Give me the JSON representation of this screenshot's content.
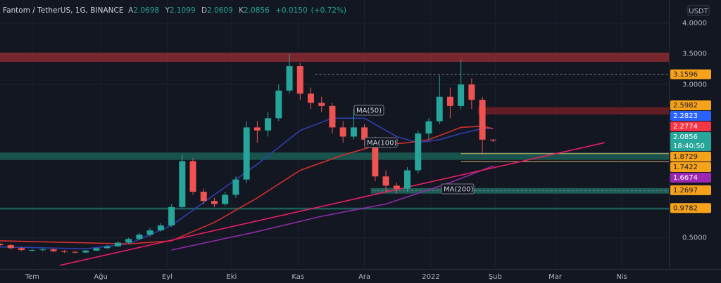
{
  "chart_data": {
    "type": "candlestick",
    "title": "Fantom / TetherUS, 1G, BINANCE",
    "ohlc_names": [
      "A",
      "Y",
      "D",
      "K"
    ],
    "ohlc_values": [
      2.0698,
      2.1099,
      2.0609,
      2.0856
    ],
    "change": {
      "value": 0.015,
      "label": "+0.0150"
    },
    "change_pct": {
      "value": 0.72,
      "label": "(+0.72%)"
    },
    "currency": "USDT",
    "countdown": "18:40:50",
    "up_color": "#26a69a",
    "down_color": "#ef5350",
    "x": [
      0,
      5,
      10,
      15,
      20,
      25,
      30,
      35,
      40,
      45,
      50,
      55,
      60,
      65,
      70,
      75,
      80,
      85,
      90,
      95,
      100,
      105,
      110,
      115,
      120,
      125,
      130,
      135,
      140,
      145,
      150,
      155,
      160,
      165,
      170,
      175,
      180,
      185,
      190,
      195,
      200,
      205,
      210,
      215,
      220,
      225,
      230
    ],
    "open": [
      0.4,
      0.38,
      0.33,
      0.3,
      0.3,
      0.31,
      0.28,
      0.27,
      0.26,
      0.29,
      0.33,
      0.36,
      0.42,
      0.48,
      0.55,
      0.62,
      0.7,
      1.0,
      1.75,
      1.25,
      1.1,
      1.05,
      1.2,
      1.45,
      2.3,
      2.25,
      2.45,
      2.9,
      3.3,
      2.85,
      2.7,
      2.65,
      2.3,
      2.15,
      2.3,
      2.1,
      1.5,
      1.35,
      1.3,
      1.6,
      2.2,
      2.4,
      2.8,
      2.65,
      3.0,
      2.75,
      2.1
    ],
    "high": [
      0.42,
      0.4,
      0.35,
      0.32,
      0.33,
      0.33,
      0.3,
      0.29,
      0.3,
      0.34,
      0.38,
      0.44,
      0.5,
      0.58,
      0.66,
      0.74,
      1.05,
      1.85,
      1.8,
      1.3,
      1.15,
      1.25,
      1.5,
      2.4,
      2.4,
      2.55,
      3.0,
      3.5,
      3.35,
      2.95,
      2.8,
      2.7,
      2.4,
      2.6,
      2.35,
      2.15,
      1.6,
      1.4,
      1.65,
      2.25,
      2.45,
      3.15,
      2.95,
      3.4,
      3.1,
      2.8,
      2.1099
    ],
    "low": [
      0.36,
      0.31,
      0.28,
      0.28,
      0.28,
      0.26,
      0.25,
      0.24,
      0.25,
      0.28,
      0.32,
      0.35,
      0.4,
      0.46,
      0.52,
      0.6,
      0.68,
      0.98,
      1.2,
      1.05,
      1.0,
      1.02,
      1.15,
      1.4,
      2.05,
      2.15,
      2.4,
      2.85,
      2.75,
      2.6,
      2.55,
      2.2,
      2.05,
      2.1,
      2.0,
      1.42,
      1.25,
      1.22,
      1.25,
      1.55,
      2.1,
      2.35,
      2.45,
      2.6,
      2.6,
      1.85,
      2.0609
    ],
    "close": [
      0.38,
      0.33,
      0.3,
      0.3,
      0.31,
      0.28,
      0.27,
      0.26,
      0.29,
      0.33,
      0.36,
      0.42,
      0.48,
      0.55,
      0.62,
      0.7,
      1.0,
      1.75,
      1.25,
      1.1,
      1.05,
      1.2,
      1.45,
      2.3,
      2.25,
      2.45,
      2.9,
      3.3,
      2.85,
      2.7,
      2.65,
      2.3,
      2.15,
      2.3,
      2.1,
      1.5,
      1.35,
      1.3,
      1.6,
      2.2,
      2.4,
      2.8,
      2.65,
      3.0,
      2.75,
      2.1,
      2.0856
    ],
    "series": [
      {
        "name": "MA(50)",
        "color": "#2f3fb0",
        "x": [
          0,
          40,
          60,
          80,
          100,
          120,
          140,
          155,
          170,
          185,
          195,
          205,
          215,
          225,
          230
        ],
        "values": [
          0.35,
          0.32,
          0.4,
          0.7,
          1.2,
          1.7,
          2.25,
          2.45,
          2.45,
          2.15,
          2.05,
          2.1,
          2.2,
          2.28,
          2.28
        ]
      },
      {
        "name": "MA(100)",
        "color": "#d32f2f",
        "x": [
          0,
          60,
          80,
          100,
          120,
          140,
          160,
          175,
          190,
          200,
          215,
          225,
          230
        ],
        "values": [
          0.45,
          0.4,
          0.45,
          0.75,
          1.15,
          1.6,
          1.85,
          2.0,
          2.05,
          2.1,
          2.3,
          2.32,
          2.28
        ]
      },
      {
        "name": "MA(200)",
        "color": "#8e2aa8",
        "x": [
          80,
          120,
          150,
          180,
          210,
          230
        ],
        "values": [
          0.3,
          0.6,
          0.85,
          1.05,
          1.4,
          1.67
        ]
      }
    ],
    "trendline": {
      "color": "#e91e63",
      "x": [
        28,
        282
      ],
      "values": [
        0.05,
        2.05
      ]
    },
    "zones": [
      {
        "color": "#8c2a30",
        "from": 0,
        "low": 3.37,
        "high": 3.52
      },
      {
        "color": "#1b5e55",
        "from": 0,
        "low": 1.77,
        "high": 1.89
      },
      {
        "color": "#1f6b60",
        "from": 0,
        "low": 0.96,
        "high": 0.99
      },
      {
        "color": "#6e2024",
        "from": 223,
        "low": 2.51,
        "high": 2.63
      },
      {
        "color": "#1f6b60",
        "from": 173,
        "low": 1.22,
        "high": 1.31
      }
    ],
    "levels": [
      {
        "value": 3.1596,
        "color": "#787b86",
        "from": 147,
        "dash": true
      },
      {
        "value": 1.2697,
        "color": "#787b86",
        "from": 174,
        "dash": true
      },
      {
        "value": 1.8729,
        "color": "#d4b06a",
        "from": 215,
        "dash": false
      },
      {
        "value": 1.7422,
        "color": "#d4b06a",
        "from": 215,
        "dash": false
      }
    ],
    "price_labels": [
      {
        "value": 3.1596,
        "color": "#f7a21b",
        "text_color": "#131722"
      },
      {
        "value": 2.5982,
        "color": "#f7a21b",
        "text_color": "#131722"
      },
      {
        "value": 2.2823,
        "color": "#2962ff",
        "text_color": "#ffffff"
      },
      {
        "value": 2.2774,
        "color": "#f23645",
        "text_color": "#ffffff"
      },
      {
        "value": 2.0856,
        "color": "#26a69a",
        "text_color": "#ffffff"
      },
      {
        "value": 1.8729,
        "color": "#f7a21b",
        "text_color": "#131722"
      },
      {
        "value": 1.7422,
        "color": "#f7a21b",
        "text_color": "#131722"
      },
      {
        "value": 1.6674,
        "color": "#9c27b0",
        "text_color": "#ffffff"
      },
      {
        "value": 1.2697,
        "color": "#f7a21b",
        "text_color": "#131722"
      },
      {
        "value": 0.9782,
        "color": "#f7a21b",
        "text_color": "#131722"
      }
    ],
    "xlim": [
      0,
      312
    ],
    "ylim": [
      0,
      4.378
    ],
    "xticks": [
      {
        "value": 15,
        "label": "Tem"
      },
      {
        "value": 47,
        "label": "Ağu"
      },
      {
        "value": 78,
        "label": "Eyl"
      },
      {
        "value": 108,
        "label": "Eki"
      },
      {
        "value": 139,
        "label": "Kas"
      },
      {
        "value": 170,
        "label": "Ara"
      },
      {
        "value": 201,
        "label": "2022"
      },
      {
        "value": 231,
        "label": "Şub"
      },
      {
        "value": 259,
        "label": "Mar"
      },
      {
        "value": 290,
        "label": "Nis"
      }
    ],
    "yticks": [
      {
        "value": 4,
        "label": "4.0000"
      },
      {
        "value": 3.5,
        "label": "3.5000"
      },
      {
        "value": 3,
        "label": "3.0000"
      },
      {
        "value": 0.5,
        "label": "0.5000"
      }
    ],
    "grid": true
  }
}
